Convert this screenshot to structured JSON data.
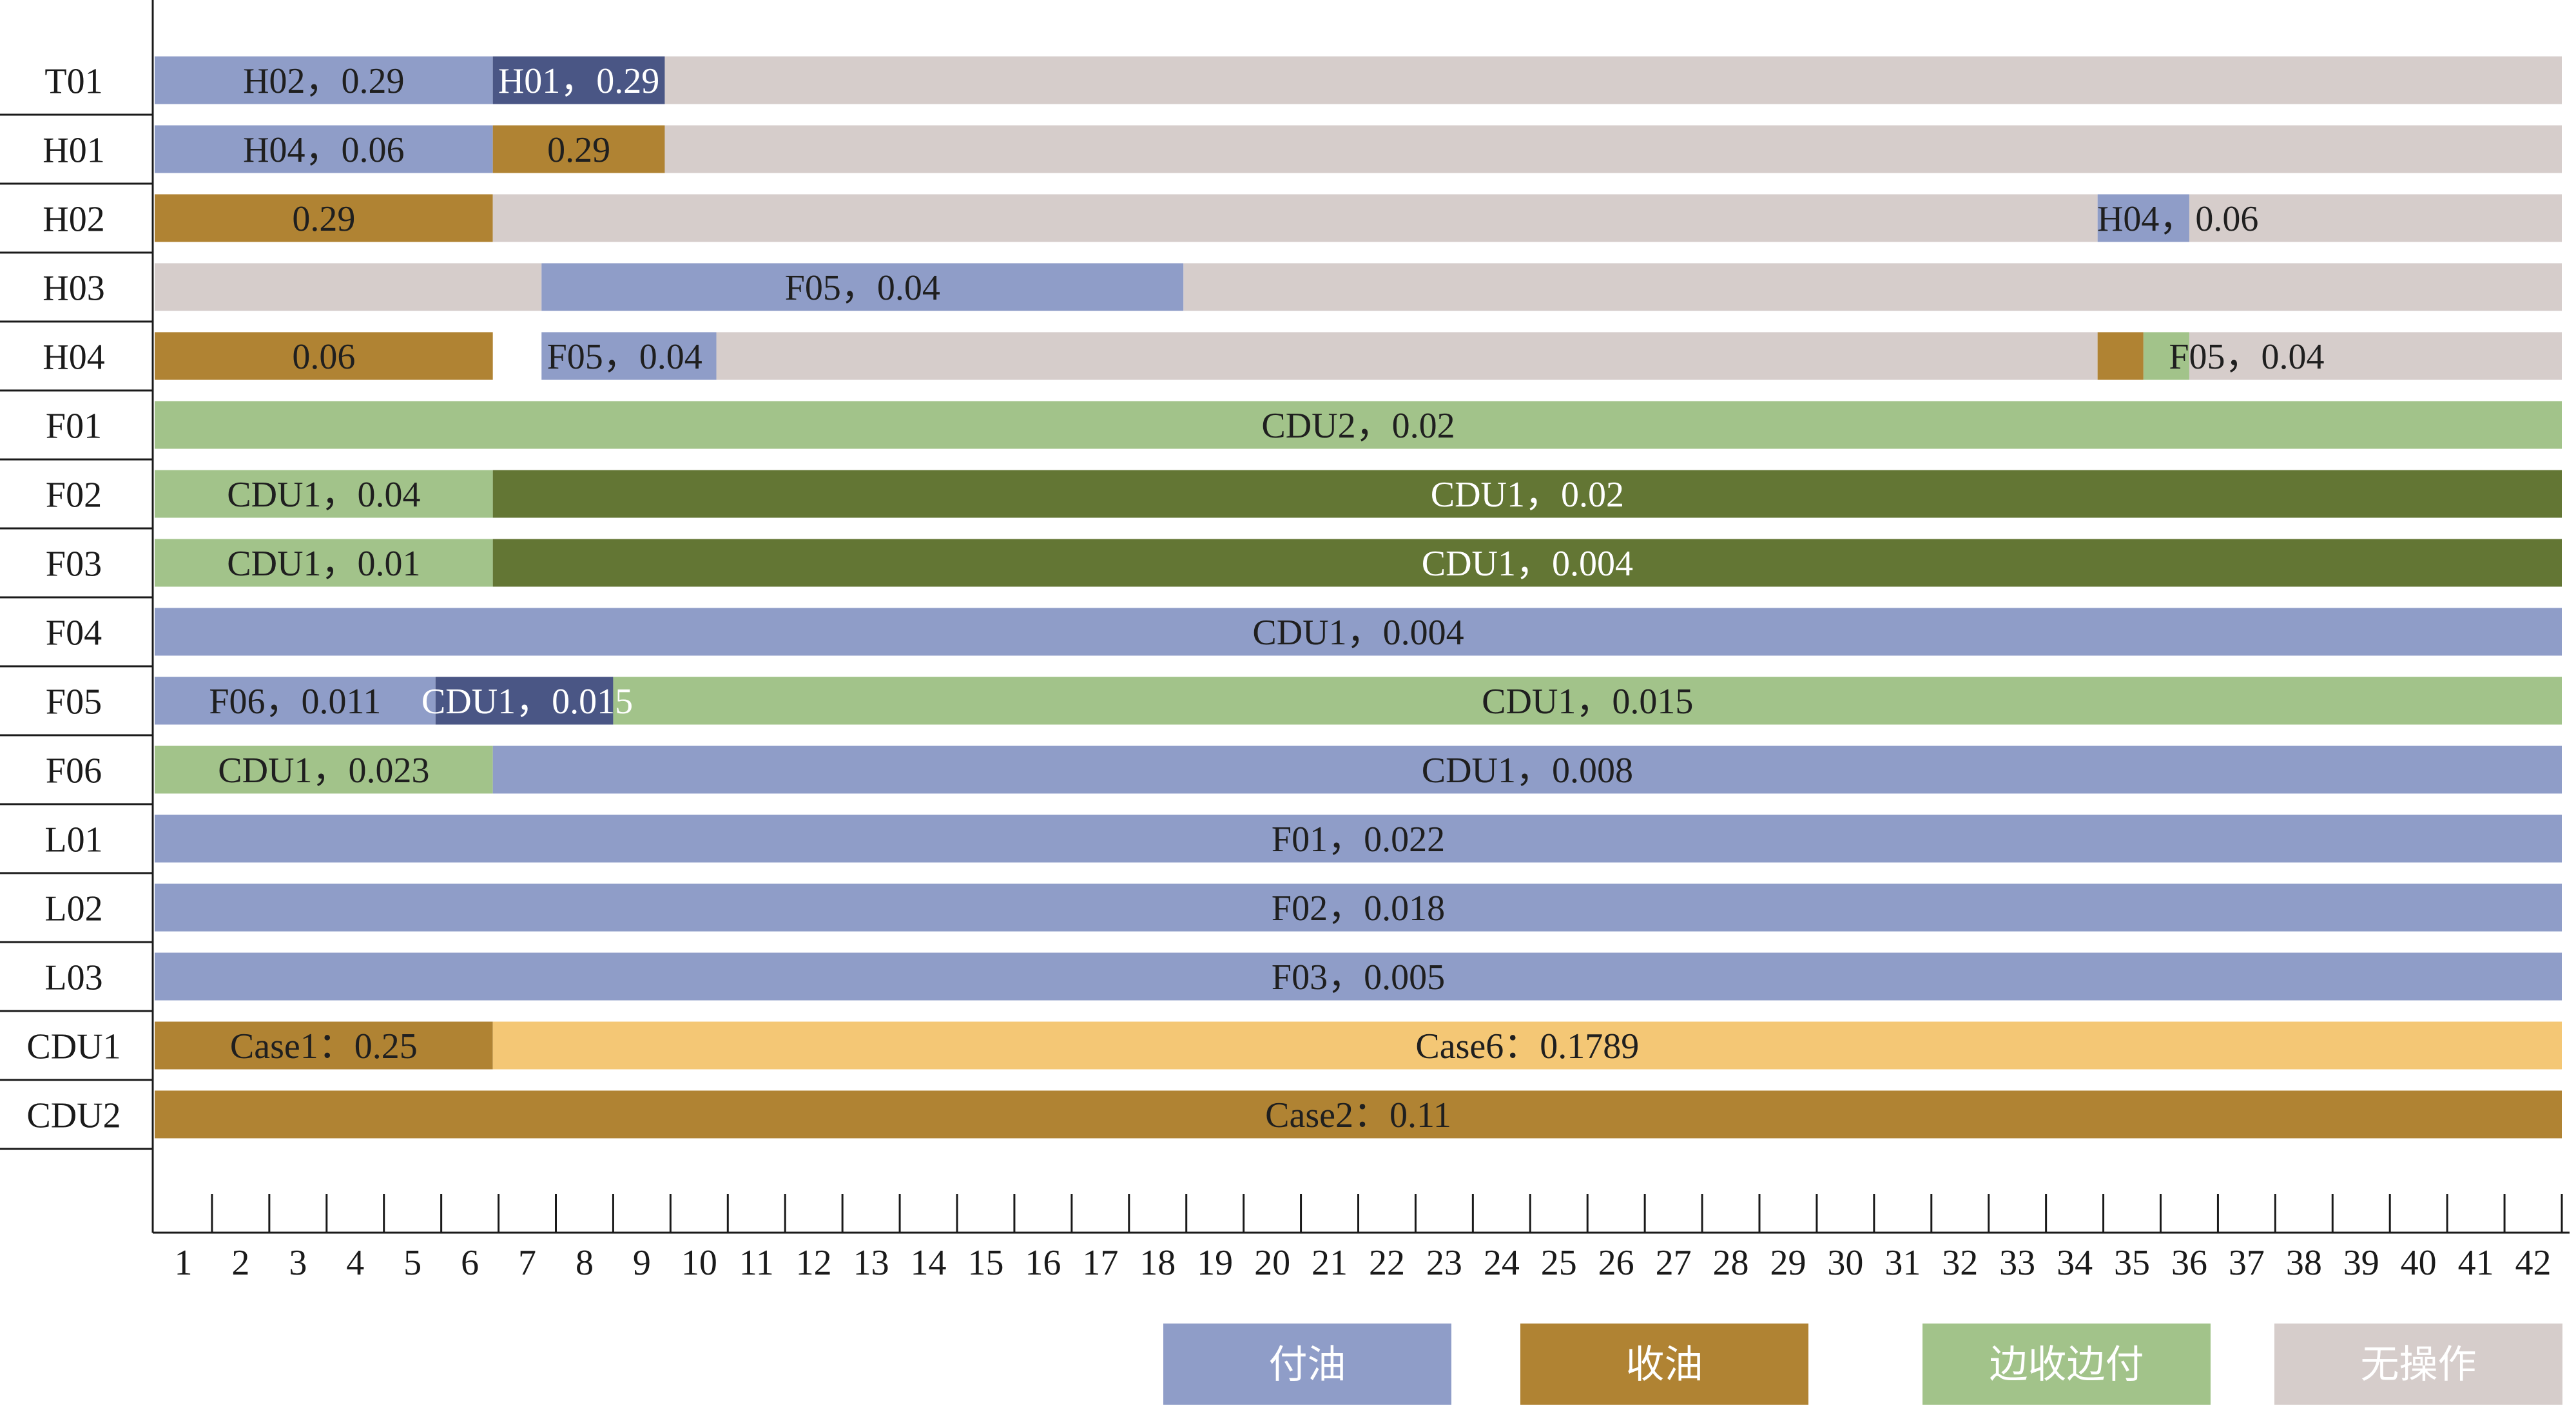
{
  "chart_data": {
    "type": "gantt",
    "title": "",
    "xlabel": "",
    "ylabel": "",
    "xlim": [
      0.5,
      42.5
    ],
    "x_ticks": [
      1,
      2,
      3,
      4,
      5,
      6,
      7,
      8,
      9,
      10,
      11,
      12,
      13,
      14,
      15,
      16,
      17,
      18,
      19,
      20,
      21,
      22,
      23,
      24,
      25,
      26,
      27,
      28,
      29,
      30,
      31,
      32,
      33,
      34,
      35,
      36,
      37,
      38,
      39,
      40,
      41,
      42
    ],
    "rows": [
      "T01",
      "H01",
      "H02",
      "H03",
      "H04",
      "F01",
      "F02",
      "F03",
      "F04",
      "F05",
      "F06",
      "L01",
      "L02",
      "L03",
      "CDU1",
      "CDU2"
    ],
    "colors": {
      "fu": "#8f9dc8",
      "fu_dark": "#4a5685",
      "shou": "#b08333",
      "bian": "#a2c38a",
      "bian_dark": "#637634",
      "none": "#d6cdcb",
      "case": "#f4c775"
    },
    "segments": [
      {
        "row": "T01",
        "start": 0.5,
        "end": 6.4,
        "cat": "fu",
        "label": "H02，0.29",
        "text_color": "#1f1f1f"
      },
      {
        "row": "T01",
        "start": 6.4,
        "end": 9.4,
        "cat": "fu_dark",
        "label": "H01，0.29",
        "text_color": "#ffffff"
      },
      {
        "row": "T01",
        "start": 9.4,
        "end": 42.5,
        "cat": "none",
        "label": "",
        "text_color": "#1f1f1f"
      },
      {
        "row": "H01",
        "start": 0.5,
        "end": 6.4,
        "cat": "fu",
        "label": "H04，0.06",
        "text_color": "#1f1f1f"
      },
      {
        "row": "H01",
        "start": 6.4,
        "end": 9.4,
        "cat": "shou",
        "label": "0.29",
        "text_color": "#1f1f1f"
      },
      {
        "row": "H01",
        "start": 9.4,
        "end": 42.5,
        "cat": "none",
        "label": "",
        "text_color": "#1f1f1f"
      },
      {
        "row": "H02",
        "start": 0.5,
        "end": 6.4,
        "cat": "shou",
        "label": "0.29",
        "text_color": "#1f1f1f"
      },
      {
        "row": "H02",
        "start": 6.4,
        "end": 34.4,
        "cat": "none",
        "label": "",
        "text_color": "#1f1f1f"
      },
      {
        "row": "H02",
        "start": 34.4,
        "end": 36.0,
        "cat": "fu",
        "label": "",
        "text_color": "#1f1f1f"
      },
      {
        "row": "H02",
        "start": 36.0,
        "end": 42.5,
        "cat": "none",
        "label": "",
        "text_color": "#1f1f1f"
      },
      {
        "row": "H03",
        "start": 0.5,
        "end": 7.25,
        "cat": "none",
        "label": "",
        "text_color": "#1f1f1f"
      },
      {
        "row": "H03",
        "start": 7.25,
        "end": 18.45,
        "cat": "fu",
        "label": "F05，0.04",
        "text_color": "#1f1f1f"
      },
      {
        "row": "H03",
        "start": 18.45,
        "end": 42.5,
        "cat": "none",
        "label": "",
        "text_color": "#1f1f1f"
      },
      {
        "row": "H04",
        "start": 0.5,
        "end": 6.4,
        "cat": "shou",
        "label": "0.06",
        "text_color": "#1f1f1f"
      },
      {
        "row": "H04",
        "start": 7.25,
        "end": 10.3,
        "cat": "fu",
        "label": "",
        "text_color": "#1f1f1f"
      },
      {
        "row": "H04",
        "start": 10.3,
        "end": 34.4,
        "cat": "none",
        "label": "",
        "text_color": "#1f1f1f"
      },
      {
        "row": "H04",
        "start": 34.4,
        "end": 35.2,
        "cat": "shou",
        "label": "",
        "text_color": "#1f1f1f"
      },
      {
        "row": "H04",
        "start": 35.2,
        "end": 36.0,
        "cat": "bian",
        "label": "",
        "text_color": "#1f1f1f"
      },
      {
        "row": "H04",
        "start": 36.0,
        "end": 42.5,
        "cat": "none",
        "label": "",
        "text_color": "#1f1f1f"
      },
      {
        "row": "F01",
        "start": 0.5,
        "end": 42.5,
        "cat": "bian",
        "label": "CDU2，0.02",
        "text_color": "#1f1f1f"
      },
      {
        "row": "F02",
        "start": 0.5,
        "end": 6.4,
        "cat": "bian",
        "label": "CDU1，0.04",
        "text_color": "#1f1f1f"
      },
      {
        "row": "F02",
        "start": 6.4,
        "end": 42.5,
        "cat": "bian_dark",
        "label": "CDU1，0.02",
        "text_color": "#ffffff"
      },
      {
        "row": "F03",
        "start": 0.5,
        "end": 6.4,
        "cat": "bian",
        "label": "CDU1，0.01",
        "text_color": "#1f1f1f"
      },
      {
        "row": "F03",
        "start": 6.4,
        "end": 42.5,
        "cat": "bian_dark",
        "label": "CDU1，0.004",
        "text_color": "#ffffff"
      },
      {
        "row": "F04",
        "start": 0.5,
        "end": 42.5,
        "cat": "fu",
        "label": "CDU1，0.004",
        "text_color": "#1f1f1f"
      },
      {
        "row": "F05",
        "start": 0.5,
        "end": 5.4,
        "cat": "fu",
        "label": "F06，0.011",
        "text_color": "#1f1f1f"
      },
      {
        "row": "F05",
        "start": 5.4,
        "end": 8.5,
        "cat": "fu_dark",
        "label": "",
        "text_color": "#ffffff"
      },
      {
        "row": "F05",
        "start": 8.5,
        "end": 42.5,
        "cat": "bian",
        "label": "CDU1，0.015",
        "text_color": "#1f1f1f"
      },
      {
        "row": "F06",
        "start": 0.5,
        "end": 6.4,
        "cat": "bian",
        "label": "CDU1，0.023",
        "text_color": "#1f1f1f"
      },
      {
        "row": "F06",
        "start": 6.4,
        "end": 42.5,
        "cat": "fu",
        "label": "CDU1，0.008",
        "text_color": "#1f1f1f"
      },
      {
        "row": "L01",
        "start": 0.5,
        "end": 42.5,
        "cat": "fu",
        "label": "F01，0.022",
        "text_color": "#1f1f1f"
      },
      {
        "row": "L02",
        "start": 0.5,
        "end": 42.5,
        "cat": "fu",
        "label": "F02，0.018",
        "text_color": "#1f1f1f"
      },
      {
        "row": "L03",
        "start": 0.5,
        "end": 42.5,
        "cat": "fu",
        "label": "F03，0.005",
        "text_color": "#1f1f1f"
      },
      {
        "row": "CDU1",
        "start": 0.5,
        "end": 6.4,
        "cat": "shou",
        "label": "Case1：0.25",
        "text_color": "#1f1f1f"
      },
      {
        "row": "CDU1",
        "start": 6.4,
        "end": 42.5,
        "cat": "case",
        "label": "Case6：0.1789",
        "text_color": "#1f1f1f"
      },
      {
        "row": "CDU2",
        "start": 0.5,
        "end": 42.5,
        "cat": "shou",
        "label": "Case2：0.11",
        "text_color": "#1f1f1f"
      }
    ],
    "overlay_labels": [
      {
        "row": "H02",
        "x": 35.8,
        "label": "H04，0.06",
        "text_color": "#1f1f1f"
      },
      {
        "row": "H04",
        "x": 8.7,
        "label": "F05，0.04",
        "text_color": "#1f1f1f"
      },
      {
        "row": "H04",
        "x": 37.0,
        "label": "F05，0.04",
        "text_color": "#1f1f1f"
      },
      {
        "row": "F05",
        "x": 7.0,
        "label": "CDU1，0.015",
        "text_color": "#ffffff"
      }
    ],
    "legend": [
      {
        "label": "付油",
        "cat": "fu"
      },
      {
        "label": "收油",
        "cat": "shou"
      },
      {
        "label": "边收边付",
        "cat": "bian"
      },
      {
        "label": "无操作",
        "cat": "none"
      }
    ],
    "legend_position": "bottom-right"
  }
}
